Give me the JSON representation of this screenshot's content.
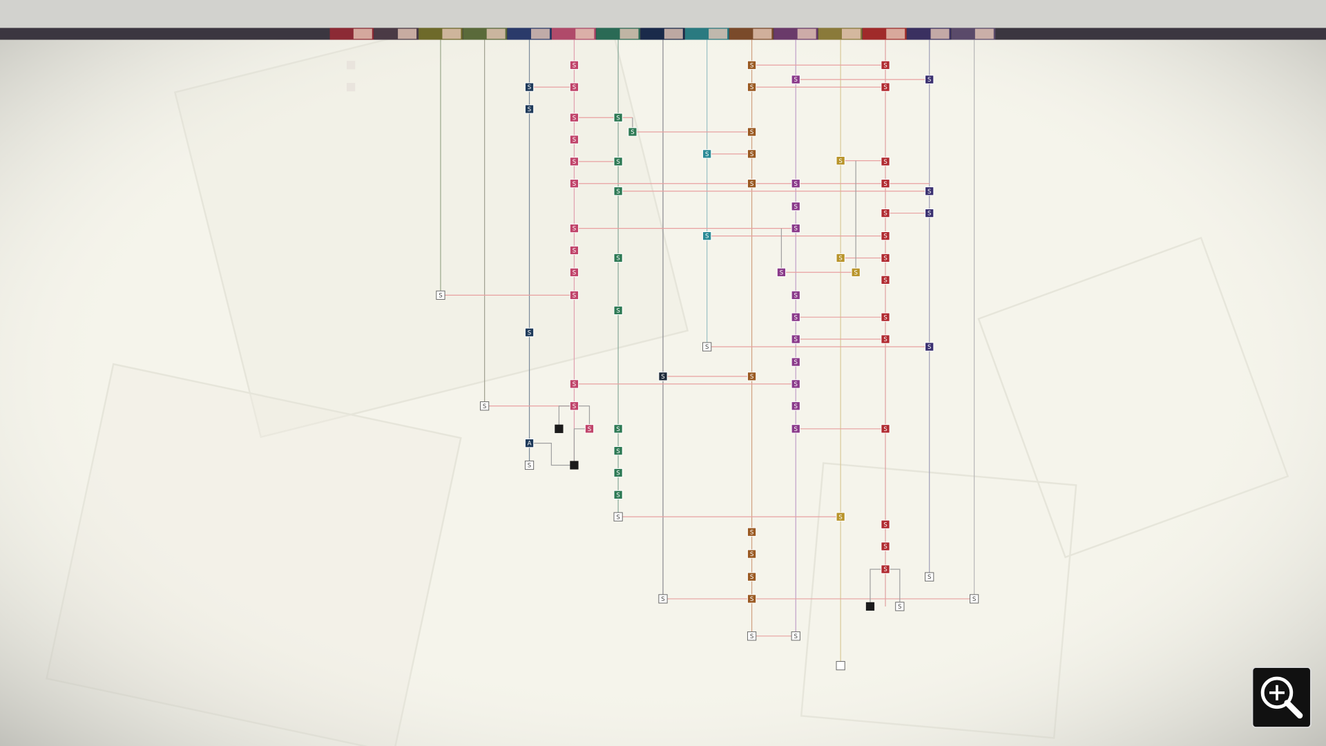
{
  "flowchart": {
    "nodes": [
      {
        "label": "S"
      },
      {
        "label": "S"
      },
      {
        "label": "S"
      },
      {
        "label": "S"
      },
      {
        "label": "S"
      },
      {
        "label": "S"
      },
      {
        "label": "S"
      },
      {
        "label": "S"
      },
      {
        "label": "S"
      },
      {
        "label": "S"
      },
      {
        "label": "S"
      },
      {
        "label": "S"
      },
      {
        "label": "S"
      },
      {
        "label": "S"
      },
      {
        "label": "S"
      },
      {
        "label": "S"
      },
      {
        "label": "A"
      },
      {
        "label": "S"
      },
      {
        "label": "S"
      },
      {
        "label": "S"
      },
      {
        "label": "S"
      },
      {
        "label": "S"
      },
      {
        "label": "S"
      },
      {
        "label": "S"
      },
      {
        "label": "S"
      },
      {
        "label": "S"
      },
      {
        "label": "S"
      },
      {
        "label": "S"
      },
      {
        "label": "S"
      },
      {
        "label": "S"
      },
      {
        "label": "S"
      },
      {
        "label": "S"
      },
      {
        "label": "S"
      },
      {
        "label": "S"
      },
      {
        "label": "S"
      },
      {
        "label": "S"
      },
      {
        "label": "S"
      },
      {
        "label": "S"
      },
      {
        "label": "S"
      },
      {
        "label": "S"
      },
      {
        "label": "S"
      },
      {
        "label": "S"
      },
      {
        "label": "S"
      },
      {
        "label": "S"
      },
      {
        "label": "S"
      },
      {
        "label": "S"
      },
      {
        "label": "S"
      },
      {
        "label": "S"
      },
      {
        "label": "S"
      },
      {
        "label": "S"
      },
      {
        "label": "S"
      },
      {
        "label": "S"
      },
      {
        "label": "S"
      },
      {
        "label": "S"
      },
      {
        "label": "S"
      },
      {
        "label": "S"
      },
      {
        "label": "S"
      },
      {
        "label": "S"
      },
      {
        "label": "S"
      },
      {
        "label": "S"
      },
      {
        "label": "S"
      },
      {
        "label": "S"
      },
      {
        "label": "S"
      },
      {
        "label": "S"
      },
      {
        "label": "S"
      },
      {
        "label": "S"
      },
      {
        "label": "S"
      },
      {
        "label": "S"
      },
      {
        "label": "S"
      },
      {
        "label": "S"
      },
      {
        "label": "S"
      },
      {
        "label": "S"
      },
      {
        "label": "S"
      },
      {
        "label": "S"
      },
      {
        "label": "S"
      },
      {
        "label": "S"
      },
      {
        "label": "S"
      },
      {
        "label": "S"
      },
      {
        "label": "S"
      },
      {
        "label": "S"
      },
      {
        "label": "S"
      },
      {
        "label": "S"
      },
      {
        "label": "S"
      },
      {
        "label": "S"
      },
      {
        "label": "S"
      }
    ]
  }
}
